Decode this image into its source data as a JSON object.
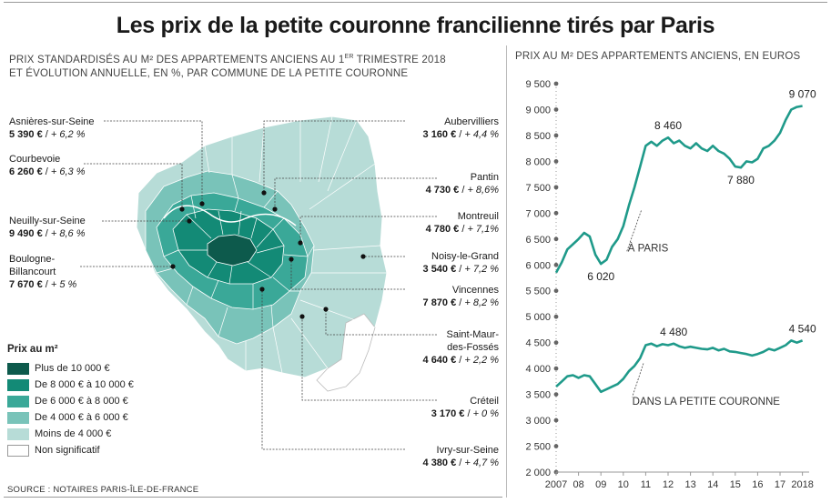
{
  "title": "Les prix de la petite couronne francilienne tirés par Paris",
  "map": {
    "subtitle_line1": "PRIX STANDARDISÉS AU M² DES APPARTEMENTS ANCIENS AU 1",
    "subtitle_sup": "ER",
    "subtitle_line1b": " TRIMESTRE 2018",
    "subtitle_line2": "ET ÉVOLUTION ANNUELLE, EN %, PAR COMMUNE DE LA PETITE COURONNE",
    "communes": [
      {
        "name": "Asnières-sur-Seine",
        "price": "5 390 €",
        "change": "+ 6,2 %"
      },
      {
        "name": "Courbevoie",
        "price": "6 260 €",
        "change": "+ 6,3 %"
      },
      {
        "name": "Neuilly-sur-Seine",
        "price": "9 490 €",
        "change": "+ 8,6 %"
      },
      {
        "name": "Boulogne-",
        "name2": "Billancourt",
        "price": "7 670 €",
        "change": "+ 5 %"
      },
      {
        "name": "Aubervilliers",
        "price": "3 160 €",
        "change": "+ 4,4 %"
      },
      {
        "name": "Pantin",
        "price": "4 730 €",
        "change": "+ 8,6%"
      },
      {
        "name": "Montreuil",
        "price": "4 780 €",
        "change": "+ 7,1%"
      },
      {
        "name": "Noisy-le-Grand",
        "price": "3 540 €",
        "change": "+ 7,2 %"
      },
      {
        "name": "Vincennes",
        "price": "7 870 €",
        "change": "+ 8,2 %"
      },
      {
        "name": "Saint-Maur-",
        "name2": "des-Fossés",
        "price": "4 640 €",
        "change": "+ 2,2 %"
      },
      {
        "name": "Créteil",
        "price": "3 170 €",
        "change": "+ 0 %"
      },
      {
        "name": "Ivry-sur-Seine",
        "price": "4 380 €",
        "change": "+ 4,7 %"
      }
    ],
    "legend_title": "Prix au m²",
    "legend": [
      {
        "label": "Plus de 10 000 €",
        "color": "#0d5a4c"
      },
      {
        "label": "De 8 000 € à 10 000 €",
        "color": "#138a76"
      },
      {
        "label": "De 6 000 € à 8 000 €",
        "color": "#3aa898"
      },
      {
        "label": "De 4 000 € à 6 000 €",
        "color": "#79c3b9"
      },
      {
        "label": "Moins de 4 000 €",
        "color": "#b7dcd7"
      },
      {
        "label": "Non significatif",
        "color": "#ffffff"
      }
    ]
  },
  "source": "SOURCE : NOTAIRES PARIS-ÎLE-DE-FRANCE",
  "chart_data": {
    "type": "line",
    "title": "PRIX AU M² DES APPARTEMENTS ANCIENS, EN EUROS",
    "xlabel": "",
    "ylabel": "",
    "ylim": [
      2000,
      9500
    ],
    "xlim": [
      2007,
      2018.3
    ],
    "grid": false,
    "x_tick_labels": [
      "2007",
      "08",
      "09",
      "10",
      "11",
      "12",
      "13",
      "14",
      "15",
      "16",
      "17",
      "2018"
    ],
    "y_tick_labels": [
      "9 500",
      "9 000",
      "8 500",
      "8 000",
      "7 500",
      "7 000",
      "6 500",
      "6 000",
      "5 500",
      "5 000",
      "4 500",
      "4 000",
      "3 500",
      "3 000",
      "2 500",
      "2 000"
    ],
    "line_color": "#1f9a8a",
    "series": [
      {
        "name": "À PARIS",
        "x": [
          2007.0,
          2007.25,
          2007.5,
          2007.75,
          2008.0,
          2008.25,
          2008.5,
          2008.75,
          2009.0,
          2009.25,
          2009.5,
          2009.75,
          2010.0,
          2010.25,
          2010.5,
          2010.75,
          2011.0,
          2011.25,
          2011.5,
          2011.75,
          2012.0,
          2012.25,
          2012.5,
          2012.75,
          2013.0,
          2013.25,
          2013.5,
          2013.75,
          2014.0,
          2014.25,
          2014.5,
          2014.75,
          2015.0,
          2015.25,
          2015.5,
          2015.75,
          2016.0,
          2016.25,
          2016.5,
          2016.75,
          2017.0,
          2017.25,
          2017.5,
          2017.75,
          2018.0
        ],
        "y": [
          5850,
          6050,
          6300,
          6400,
          6500,
          6620,
          6550,
          6200,
          6020,
          6100,
          6350,
          6500,
          6750,
          7150,
          7500,
          7900,
          8300,
          8380,
          8300,
          8400,
          8460,
          8350,
          8400,
          8300,
          8250,
          8350,
          8250,
          8200,
          8300,
          8200,
          8150,
          8050,
          7900,
          7880,
          8000,
          7980,
          8050,
          8250,
          8300,
          8400,
          8550,
          8800,
          9000,
          9050,
          9070
        ],
        "labels": [
          {
            "x": 2009.0,
            "y": 6020,
            "text": "6 020"
          },
          {
            "x": 2012.0,
            "y": 8460,
            "text": "8 460"
          },
          {
            "x": 2015.25,
            "y": 7880,
            "text": "7 880"
          },
          {
            "x": 2018.0,
            "y": 9070,
            "text": "9 070"
          }
        ]
      },
      {
        "name": "DANS LA PETITE COURONNE",
        "x": [
          2007.0,
          2007.25,
          2007.5,
          2007.75,
          2008.0,
          2008.25,
          2008.5,
          2008.75,
          2009.0,
          2009.25,
          2009.5,
          2009.75,
          2010.0,
          2010.25,
          2010.5,
          2010.75,
          2011.0,
          2011.25,
          2011.5,
          2011.75,
          2012.0,
          2012.25,
          2012.5,
          2012.75,
          2013.0,
          2013.25,
          2013.5,
          2013.75,
          2014.0,
          2014.25,
          2014.5,
          2014.75,
          2015.0,
          2015.25,
          2015.5,
          2015.75,
          2016.0,
          2016.25,
          2016.5,
          2016.75,
          2017.0,
          2017.25,
          2017.5,
          2017.75,
          2018.0
        ],
        "y": [
          3650,
          3750,
          3850,
          3870,
          3820,
          3870,
          3850,
          3700,
          3550,
          3600,
          3650,
          3700,
          3800,
          3950,
          4050,
          4200,
          4450,
          4480,
          4430,
          4470,
          4450,
          4480,
          4430,
          4400,
          4420,
          4400,
          4380,
          4370,
          4400,
          4350,
          4380,
          4330,
          4320,
          4300,
          4280,
          4250,
          4280,
          4320,
          4380,
          4350,
          4400,
          4450,
          4540,
          4500,
          4540
        ],
        "labels": [
          {
            "x": 2012.25,
            "y": 4480,
            "text": "4 480"
          },
          {
            "x": 2018.0,
            "y": 4540,
            "text": "4 540"
          }
        ]
      }
    ]
  }
}
